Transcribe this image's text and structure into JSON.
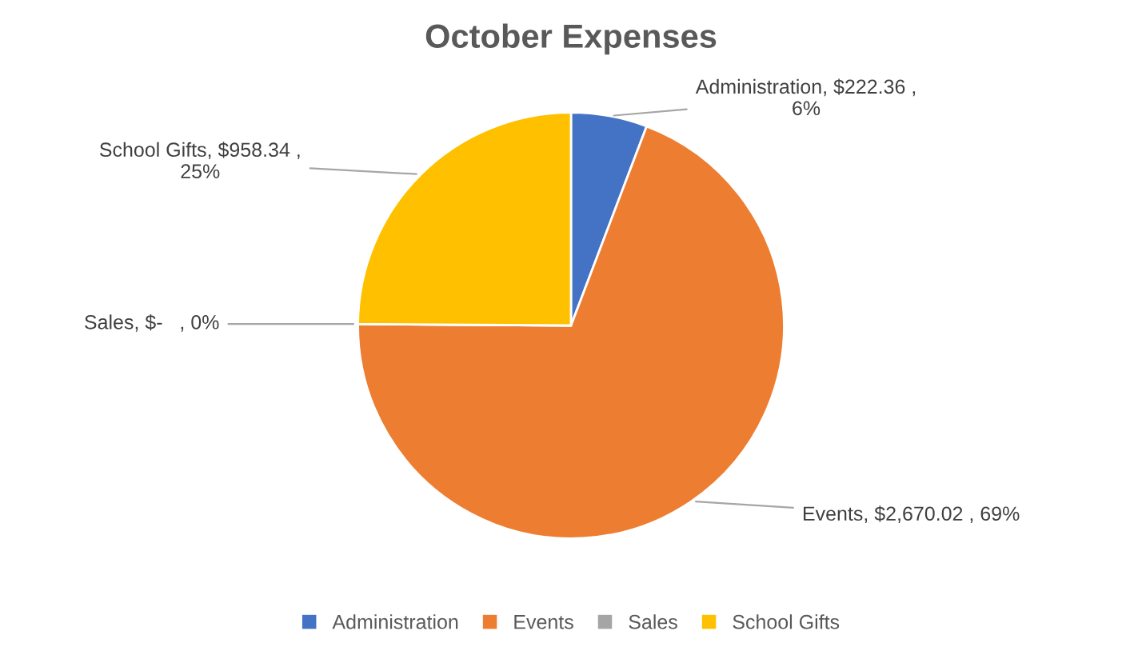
{
  "chart_data": {
    "type": "pie",
    "title": "October Expenses",
    "categories": [
      "Administration",
      "Events",
      "Sales",
      "School Gifts"
    ],
    "values": [
      222.36,
      2670.02,
      0,
      958.34
    ],
    "colors": [
      "#4472c4",
      "#ed7d31",
      "#a5a5a5",
      "#ffc000"
    ],
    "value_labels": [
      "Administration, $222.36 ,\n6%",
      "Events, $2,670.02 , 69%",
      "Sales, $-   , 0%",
      "School Gifts, $958.34 ,\n25%"
    ],
    "legend": "bottom"
  }
}
